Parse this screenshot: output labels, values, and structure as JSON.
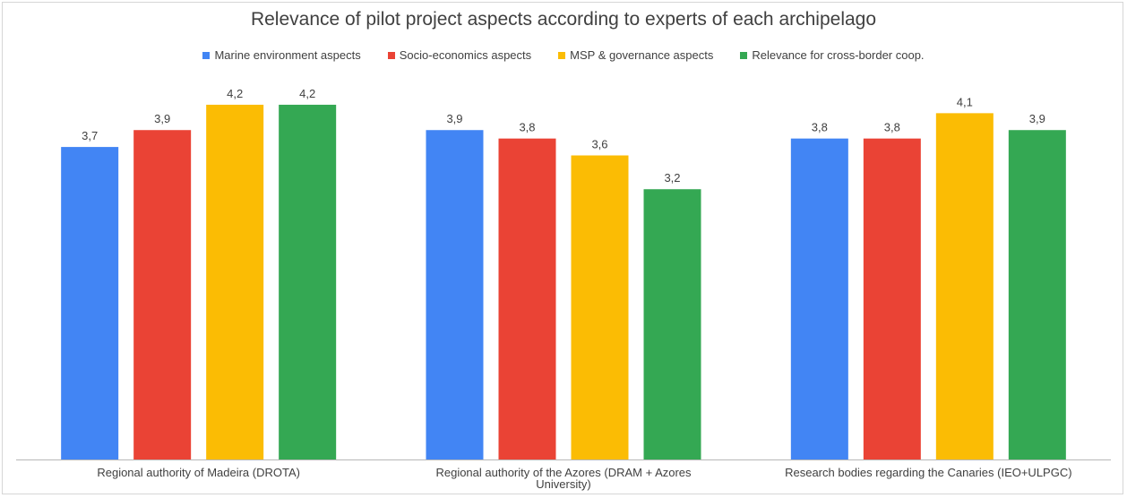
{
  "chart_data": {
    "type": "bar",
    "title": "Relevance of pilot project aspects according to experts of each archipelago",
    "categories": [
      [
        "Regional authority of Madeira (DROTA)"
      ],
      [
        "Regional authority of the Azores (DRAM + Azores",
        "University)"
      ],
      [
        "Research bodies regarding the Canaries (IEO+ULPGC)"
      ]
    ],
    "series": [
      {
        "name": "Marine environment aspects",
        "color": "#4285f4",
        "values": [
          3.7,
          3.9,
          3.8
        ],
        "labels": [
          "3,7",
          "3,9",
          "3,8"
        ]
      },
      {
        "name": "Socio-economics aspects",
        "color": "#ea4335",
        "values": [
          3.9,
          3.8,
          3.8
        ],
        "labels": [
          "3,9",
          "3,8",
          "3,8"
        ]
      },
      {
        "name": "MSP & governance aspects",
        "color": "#fbbc04",
        "values": [
          4.2,
          3.6,
          4.1
        ],
        "labels": [
          "4,2",
          "3,6",
          "4,1"
        ]
      },
      {
        "name": "Relevance for cross-border coop.",
        "color": "#34a853",
        "values": [
          4.2,
          3.2,
          3.9
        ],
        "labels": [
          "4,2",
          "3,2",
          "3,9"
        ]
      }
    ],
    "ylim": [
      0,
      4.5
    ],
    "legend_position": "top",
    "grid": false
  }
}
